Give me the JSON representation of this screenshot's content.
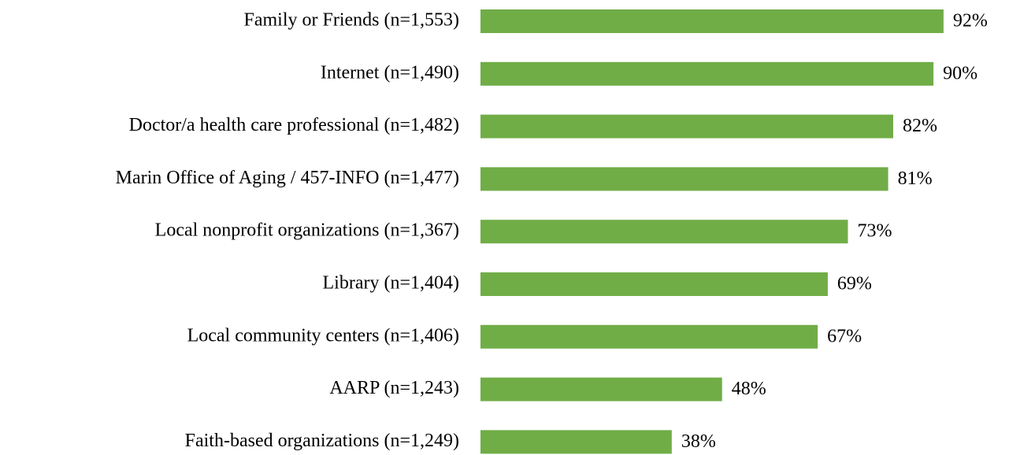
{
  "chart_data": {
    "type": "bar",
    "orientation": "horizontal",
    "categories": [
      "Family or Friends (n=1,553)",
      "Internet (n=1,490)",
      "Doctor/a health care professional (n=1,482)",
      "Marin Office of Aging / 457-INFO (n=1,477)",
      "Local nonprofit organizations (n=1,367)",
      "Library (n=1,404)",
      "Local community centers (n=1,406)",
      "AARP (n=1,243)",
      "Faith-based organizations (n=1,249)"
    ],
    "values": [
      92,
      90,
      82,
      81,
      73,
      69,
      67,
      48,
      38
    ],
    "value_labels": [
      "92%",
      "90%",
      "82%",
      "81%",
      "73%",
      "69%",
      "67%",
      "48%",
      "38%"
    ],
    "color": "#70ad47"
  }
}
